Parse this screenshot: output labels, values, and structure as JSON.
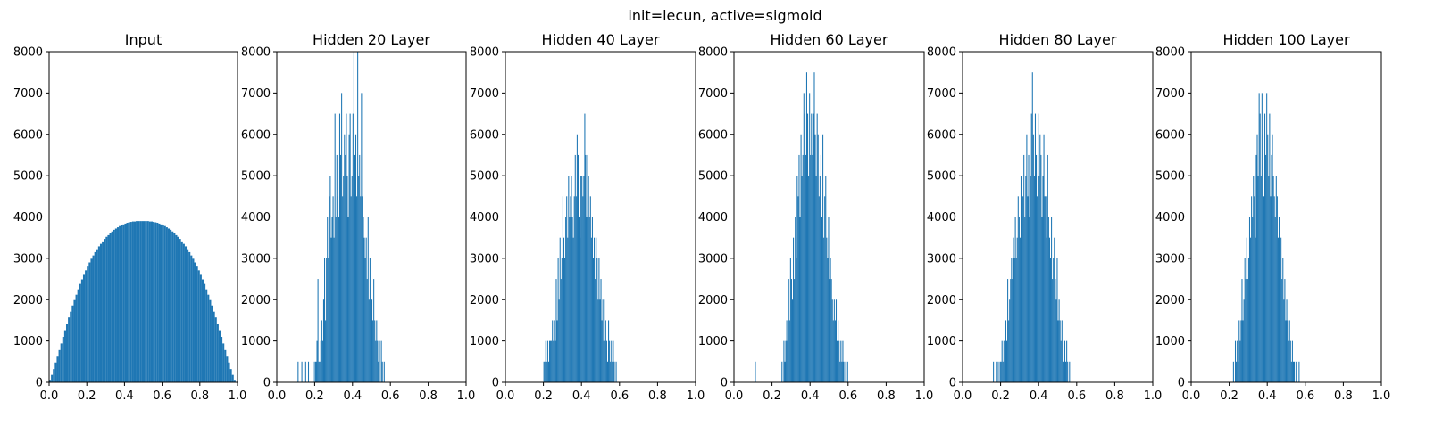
{
  "figure": {
    "suptitle": "init=lecun, active=sigmoid"
  },
  "chart_data": [
    {
      "type": "bar",
      "title": "Input",
      "xlim": [
        0,
        1
      ],
      "ylim": [
        0,
        8000
      ],
      "xticks": [
        "0.0",
        "0.2",
        "0.4",
        "0.6",
        "0.8",
        "1.0"
      ],
      "yticks": [
        "0",
        "1000",
        "2000",
        "3000",
        "4000",
        "5000",
        "6000",
        "7000",
        "8000"
      ],
      "bar_color": "#1f77b4",
      "bin_start": 0.0,
      "bin_width": 0.01,
      "values": [
        60,
        180,
        320,
        480,
        620,
        780,
        940,
        1100,
        1260,
        1420,
        1570,
        1710,
        1860,
        1990,
        2120,
        2250,
        2380,
        2490,
        2600,
        2710,
        2800,
        2900,
        2990,
        3070,
        3150,
        3220,
        3290,
        3350,
        3410,
        3470,
        3520,
        3560,
        3610,
        3650,
        3690,
        3720,
        3750,
        3780,
        3800,
        3820,
        3840,
        3860,
        3870,
        3880,
        3890,
        3890,
        3900,
        3900,
        3900,
        3900,
        3900,
        3900,
        3900,
        3890,
        3890,
        3880,
        3870,
        3860,
        3840,
        3820,
        3800,
        3780,
        3750,
        3720,
        3690,
        3650,
        3610,
        3560,
        3520,
        3470,
        3410,
        3350,
        3290,
        3220,
        3150,
        3070,
        2990,
        2900,
        2800,
        2710,
        2600,
        2490,
        2380,
        2250,
        2120,
        1990,
        1860,
        1710,
        1570,
        1420,
        1260,
        1100,
        940,
        780,
        620,
        480,
        320,
        180,
        60
      ]
    },
    {
      "type": "bar",
      "title": "Hidden 20 Layer",
      "xlim": [
        0,
        1
      ],
      "ylim": [
        0,
        8000
      ],
      "xticks": [
        "0.0",
        "0.2",
        "0.4",
        "0.6",
        "0.8",
        "1.0"
      ],
      "yticks": [
        "0",
        "1000",
        "2000",
        "3000",
        "4000",
        "5000",
        "6000",
        "7000",
        "8000"
      ],
      "bar_color": "#1f77b4",
      "bin_start": 0.0,
      "bin_width": 0.005,
      "values": [
        0,
        0,
        0,
        0,
        0,
        0,
        0,
        0,
        0,
        0,
        0,
        0,
        0,
        0,
        0,
        0,
        0,
        0,
        0,
        0,
        0,
        0,
        500,
        0,
        0,
        0,
        500,
        0,
        0,
        0,
        500,
        0,
        0,
        500,
        0,
        0,
        0,
        0,
        500,
        0,
        500,
        500,
        1000,
        2500,
        500,
        500,
        1000,
        1500,
        1000,
        2000,
        3000,
        1500,
        3000,
        4000,
        3000,
        4500,
        5000,
        3500,
        4000,
        4500,
        3500,
        6500,
        4000,
        5500,
        4500,
        4000,
        6500,
        5500,
        7000,
        4500,
        5000,
        6000,
        5500,
        6500,
        5000,
        4000,
        6000,
        6500,
        4500,
        5000,
        6500,
        8000,
        5500,
        6000,
        4500,
        8000,
        5000,
        5500,
        4500,
        7000,
        4500,
        4000,
        3500,
        3000,
        3500,
        2500,
        4000,
        2000,
        3000,
        2500,
        2000,
        1500,
        2500,
        1500,
        1000,
        1500,
        1000,
        500,
        1000,
        0,
        1000,
        500,
        0,
        500,
        0,
        0,
        0,
        0,
        0,
        0,
        0,
        0,
        0,
        0,
        0,
        0,
        0,
        0,
        0,
        0,
        0,
        0,
        0,
        0,
        0,
        0,
        0,
        0,
        0,
        0,
        0,
        0,
        0,
        0,
        0,
        0,
        0,
        0,
        0,
        0,
        0,
        0,
        0,
        0,
        0,
        0,
        0,
        0,
        0,
        0,
        0,
        0,
        0,
        0,
        0,
        0,
        0,
        0,
        0,
        0,
        0,
        0,
        0,
        0,
        0,
        0,
        0,
        0,
        0,
        0,
        0,
        0,
        0,
        0,
        0,
        0,
        0,
        0,
        0,
        0,
        0,
        0,
        0,
        0,
        0,
        0,
        0,
        0,
        0,
        0
      ]
    },
    {
      "type": "bar",
      "title": "Hidden 40 Layer",
      "xlim": [
        0,
        1
      ],
      "ylim": [
        0,
        8000
      ],
      "xticks": [
        "0.0",
        "0.2",
        "0.4",
        "0.6",
        "0.8",
        "1.0"
      ],
      "yticks": [
        "0",
        "1000",
        "2000",
        "3000",
        "4000",
        "5000",
        "6000",
        "7000",
        "8000"
      ],
      "bar_color": "#1f77b4",
      "bin_start": 0.0,
      "bin_width": 0.005,
      "values": [
        0,
        0,
        0,
        0,
        0,
        0,
        0,
        0,
        0,
        0,
        0,
        0,
        0,
        0,
        0,
        0,
        0,
        0,
        0,
        0,
        0,
        0,
        0,
        0,
        0,
        0,
        0,
        0,
        0,
        0,
        0,
        0,
        0,
        0,
        0,
        0,
        0,
        0,
        0,
        0,
        500,
        500,
        1000,
        500,
        1000,
        500,
        1000,
        1000,
        1000,
        1500,
        1000,
        1500,
        1000,
        2500,
        1500,
        3000,
        2000,
        3500,
        2500,
        3000,
        4500,
        3500,
        3000,
        4000,
        4500,
        3500,
        5000,
        4000,
        4500,
        5000,
        4000,
        3500,
        4500,
        5500,
        4500,
        6000,
        5500,
        4000,
        3500,
        5000,
        5000,
        4500,
        5000,
        6500,
        5500,
        4000,
        5500,
        5000,
        4000,
        4500,
        3500,
        4000,
        3000,
        3500,
        2500,
        3500,
        3000,
        2000,
        3000,
        2000,
        2500,
        1500,
        2000,
        1000,
        2000,
        1500,
        1000,
        500,
        1500,
        1000,
        500,
        1000,
        500,
        1000,
        500,
        0,
        500,
        0,
        0,
        0,
        0,
        0,
        0,
        0,
        0,
        0,
        0,
        0,
        0,
        0,
        0,
        0,
        0,
        0,
        0,
        0,
        0,
        0,
        0,
        0,
        0,
        0,
        0,
        0,
        0,
        0,
        0,
        0,
        0,
        0,
        0,
        0,
        0,
        0,
        0,
        0,
        0,
        0,
        0,
        0,
        0,
        0,
        0,
        0,
        0,
        0,
        0,
        0,
        0,
        0,
        0,
        0,
        0,
        0,
        0,
        0,
        0,
        0,
        0,
        0,
        0,
        0,
        0,
        0,
        0,
        0,
        0,
        0,
        0,
        0,
        0,
        0,
        0,
        0,
        0,
        0,
        0,
        0,
        0,
        0,
        0,
        0,
        0,
        0,
        0,
        0,
        0,
        0,
        0,
        0
      ]
    },
    {
      "type": "bar",
      "title": "Hidden 60 Layer",
      "xlim": [
        0,
        1
      ],
      "ylim": [
        0,
        8000
      ],
      "xticks": [
        "0.0",
        "0.2",
        "0.4",
        "0.6",
        "0.8",
        "1.0"
      ],
      "yticks": [
        "0",
        "1000",
        "2000",
        "3000",
        "4000",
        "5000",
        "6000",
        "7000",
        "8000"
      ],
      "bar_color": "#1f77b4",
      "bin_start": 0.0,
      "bin_width": 0.005,
      "values": [
        0,
        0,
        0,
        0,
        0,
        0,
        0,
        0,
        0,
        0,
        0,
        0,
        0,
        0,
        0,
        0,
        0,
        0,
        0,
        0,
        0,
        0,
        500,
        0,
        0,
        0,
        0,
        0,
        0,
        0,
        0,
        0,
        0,
        0,
        0,
        0,
        0,
        0,
        0,
        0,
        0,
        0,
        0,
        0,
        0,
        0,
        0,
        0,
        0,
        0,
        500,
        0,
        1000,
        500,
        1000,
        1500,
        1000,
        2500,
        1500,
        3000,
        2500,
        2000,
        3500,
        2500,
        4000,
        3000,
        5000,
        4500,
        5500,
        4000,
        6000,
        5000,
        5500,
        7000,
        6500,
        5500,
        7500,
        6500,
        5000,
        7000,
        5500,
        6500,
        5500,
        6500,
        7500,
        6000,
        5000,
        6500,
        6000,
        4500,
        5000,
        5500,
        4000,
        6000,
        3500,
        4500,
        5000,
        3500,
        3000,
        4000,
        2500,
        3000,
        2500,
        2000,
        1500,
        2000,
        1500,
        2000,
        1000,
        1500,
        1000,
        500,
        1000,
        500,
        1000,
        500,
        0,
        500,
        0,
        500,
        0,
        0,
        0,
        0,
        0,
        0,
        0,
        0,
        0,
        0,
        0,
        0,
        0,
        0,
        0,
        0,
        0,
        0,
        0,
        0,
        0,
        0,
        0,
        0,
        0,
        0,
        0,
        0,
        0,
        0,
        0,
        0,
        0,
        0,
        0,
        0,
        0,
        0,
        0,
        0,
        0,
        0,
        0,
        0,
        0,
        0,
        0,
        0,
        0,
        0,
        0,
        0,
        0,
        0,
        0,
        0,
        0,
        0,
        0,
        0,
        0,
        0,
        0,
        0,
        0,
        0,
        0,
        0,
        0,
        0,
        0,
        0,
        0,
        0,
        0,
        0,
        0,
        0,
        0,
        0,
        0,
        0,
        0,
        0,
        0,
        0,
        0,
        0,
        0,
        0
      ]
    },
    {
      "type": "bar",
      "title": "Hidden 80 Layer",
      "xlim": [
        0,
        1
      ],
      "ylim": [
        0,
        8000
      ],
      "xticks": [
        "0.0",
        "0.2",
        "0.4",
        "0.6",
        "0.8",
        "1.0"
      ],
      "yticks": [
        "0",
        "1000",
        "2000",
        "3000",
        "4000",
        "5000",
        "6000",
        "7000",
        "8000"
      ],
      "bar_color": "#1f77b4",
      "bin_start": 0.0,
      "bin_width": 0.005,
      "values": [
        0,
        0,
        0,
        0,
        0,
        0,
        0,
        0,
        0,
        0,
        0,
        0,
        0,
        0,
        0,
        0,
        0,
        0,
        0,
        0,
        0,
        0,
        0,
        0,
        0,
        0,
        0,
        0,
        0,
        0,
        0,
        0,
        500,
        0,
        0,
        500,
        0,
        500,
        0,
        500,
        500,
        1000,
        500,
        1000,
        500,
        1500,
        1000,
        2500,
        1500,
        2000,
        2500,
        3000,
        2500,
        3500,
        3000,
        4000,
        3000,
        3500,
        4500,
        4000,
        3500,
        5000,
        4000,
        4500,
        5500,
        4000,
        5000,
        6000,
        4500,
        5500,
        4000,
        5000,
        6500,
        7500,
        6000,
        5000,
        6500,
        5500,
        4500,
        6500,
        5000,
        6000,
        5500,
        4000,
        5000,
        6000,
        4500,
        4500,
        3500,
        5500,
        4000,
        3500,
        3000,
        4000,
        2500,
        3000,
        3500,
        2500,
        2000,
        3000,
        1500,
        2000,
        1500,
        1000,
        1500,
        1000,
        500,
        1000,
        500,
        1000,
        500,
        0,
        500,
        0,
        0,
        0,
        0,
        0,
        0,
        0,
        0,
        0,
        0,
        0,
        0,
        0,
        0,
        0,
        0,
        0,
        0,
        0,
        0,
        0,
        0,
        0,
        0,
        0,
        0,
        0,
        0,
        0,
        0,
        0,
        0,
        0,
        0,
        0,
        0,
        0,
        0,
        0,
        0,
        0,
        0,
        0,
        0,
        0,
        0,
        0,
        0,
        0,
        0,
        0,
        0,
        0,
        0,
        0,
        0,
        0,
        0,
        0,
        0,
        0,
        0,
        0,
        0,
        0,
        0,
        0,
        0,
        0,
        0,
        0,
        0,
        0,
        0,
        0,
        0,
        0,
        0,
        0,
        0,
        0,
        0,
        0,
        0,
        0,
        0,
        0,
        0,
        0,
        0,
        0,
        0,
        0,
        0,
        0
      ]
    },
    {
      "type": "bar",
      "title": "Hidden 100 Layer",
      "xlim": [
        0,
        1
      ],
      "ylim": [
        0,
        8000
      ],
      "xticks": [
        "0.0",
        "0.2",
        "0.4",
        "0.6",
        "0.8",
        "1.0"
      ],
      "yticks": [
        "0",
        "1000",
        "2000",
        "3000",
        "4000",
        "5000",
        "6000",
        "7000",
        "8000"
      ],
      "bar_color": "#1f77b4",
      "bin_start": 0.0,
      "bin_width": 0.005,
      "values": [
        0,
        0,
        0,
        0,
        0,
        0,
        0,
        0,
        0,
        0,
        0,
        0,
        0,
        0,
        0,
        0,
        0,
        0,
        0,
        0,
        0,
        0,
        0,
        0,
        0,
        0,
        0,
        0,
        0,
        0,
        0,
        0,
        0,
        0,
        0,
        0,
        0,
        0,
        0,
        0,
        0,
        0,
        0,
        0,
        500,
        0,
        1000,
        500,
        1000,
        500,
        1500,
        1000,
        1500,
        2500,
        1500,
        2000,
        3000,
        2500,
        3500,
        2500,
        3000,
        4000,
        3500,
        4500,
        4000,
        5000,
        4500,
        3500,
        5500,
        6000,
        5000,
        7000,
        6500,
        5000,
        7000,
        6000,
        4500,
        6500,
        5500,
        7000,
        6000,
        5000,
        6500,
        4500,
        5500,
        6000,
        5000,
        4500,
        4000,
        5000,
        4500,
        3500,
        4000,
        3000,
        3500,
        2500,
        3000,
        2000,
        2500,
        1500,
        2000,
        1500,
        1000,
        1500,
        1000,
        500,
        1000,
        500,
        500,
        0,
        500,
        0,
        0,
        500,
        0,
        0,
        0,
        0,
        0,
        0,
        0,
        0,
        0,
        0,
        0,
        0,
        0,
        0,
        0,
        0,
        0,
        0,
        0,
        0,
        0,
        0,
        0,
        0,
        0,
        0,
        0,
        0,
        0,
        0,
        0,
        0,
        0,
        0,
        0,
        0,
        0,
        0,
        0,
        0,
        0,
        0,
        0,
        0,
        0,
        0,
        0,
        0,
        0,
        0,
        0,
        0,
        0,
        0,
        0,
        0,
        0,
        0,
        0,
        0,
        0,
        0,
        0,
        0,
        0,
        0,
        0,
        0,
        0,
        0,
        0,
        0,
        0,
        0,
        0,
        0,
        0,
        0,
        0,
        0,
        0,
        0,
        0,
        0,
        0,
        0,
        0,
        0,
        0,
        0,
        0,
        0,
        0,
        0,
        0
      ]
    }
  ]
}
